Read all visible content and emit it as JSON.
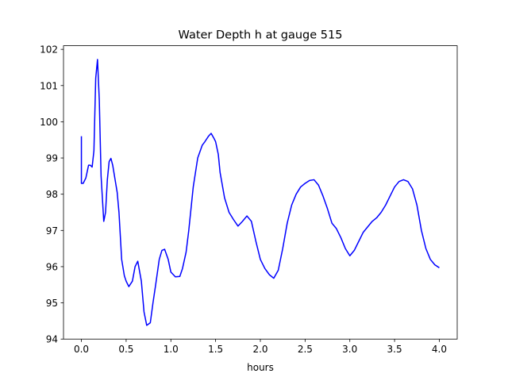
{
  "chart_data": {
    "type": "line",
    "title": "Water Depth h at gauge 515",
    "xlabel": "hours",
    "ylabel": "",
    "xlim": [
      -0.2,
      4.2
    ],
    "ylim": [
      94,
      102.1
    ],
    "grid": false,
    "x_ticks": [
      0.0,
      0.5,
      1.0,
      1.5,
      2.0,
      2.5,
      3.0,
      3.5,
      4.0
    ],
    "x_tick_labels": [
      "0.0",
      "0.5",
      "1.0",
      "1.5",
      "2.0",
      "2.5",
      "3.0",
      "3.5",
      "4.0"
    ],
    "y_ticks": [
      94,
      95,
      96,
      97,
      98,
      99,
      100,
      101,
      102
    ],
    "y_tick_labels": [
      "94",
      "95",
      "96",
      "97",
      "98",
      "99",
      "100",
      "101",
      "102"
    ],
    "series": [
      {
        "color": "#0000ff",
        "x": [
          0.0,
          0.0,
          0.02,
          0.05,
          0.08,
          0.1,
          0.12,
          0.14,
          0.16,
          0.18,
          0.2,
          0.22,
          0.25,
          0.27,
          0.29,
          0.31,
          0.33,
          0.35,
          0.37,
          0.4,
          0.42,
          0.45,
          0.48,
          0.5,
          0.53,
          0.57,
          0.6,
          0.63,
          0.67,
          0.7,
          0.73,
          0.77,
          0.8,
          0.83,
          0.87,
          0.9,
          0.93,
          0.97,
          1.0,
          1.05,
          1.1,
          1.13,
          1.17,
          1.2,
          1.25,
          1.3,
          1.35,
          1.38,
          1.42,
          1.45,
          1.48,
          1.5,
          1.53,
          1.55,
          1.6,
          1.65,
          1.7,
          1.75,
          1.8,
          1.85,
          1.9,
          1.95,
          2.0,
          2.05,
          2.1,
          2.15,
          2.2,
          2.25,
          2.3,
          2.35,
          2.4,
          2.45,
          2.5,
          2.55,
          2.6,
          2.65,
          2.7,
          2.75,
          2.8,
          2.85,
          2.9,
          2.95,
          3.0,
          3.05,
          3.1,
          3.15,
          3.2,
          3.25,
          3.3,
          3.35,
          3.4,
          3.45,
          3.5,
          3.55,
          3.6,
          3.65,
          3.7,
          3.75,
          3.8,
          3.85,
          3.9,
          3.95,
          4.0
        ],
        "y": [
          99.6,
          98.3,
          98.3,
          98.45,
          98.8,
          98.8,
          98.75,
          99.2,
          101.2,
          101.72,
          100.6,
          98.5,
          97.25,
          97.5,
          98.4,
          98.9,
          98.99,
          98.8,
          98.5,
          98.05,
          97.5,
          96.2,
          95.75,
          95.6,
          95.45,
          95.6,
          96.0,
          96.15,
          95.6,
          94.75,
          94.38,
          94.45,
          95.0,
          95.5,
          96.2,
          96.45,
          96.48,
          96.2,
          95.85,
          95.72,
          95.73,
          95.95,
          96.4,
          97.0,
          98.2,
          99.0,
          99.35,
          99.45,
          99.6,
          99.68,
          99.55,
          99.45,
          99.1,
          98.6,
          97.9,
          97.5,
          97.3,
          97.12,
          97.25,
          97.4,
          97.25,
          96.7,
          96.2,
          95.95,
          95.78,
          95.68,
          95.9,
          96.5,
          97.2,
          97.7,
          98.0,
          98.2,
          98.3,
          98.38,
          98.4,
          98.25,
          97.95,
          97.6,
          97.2,
          97.05,
          96.8,
          96.5,
          96.3,
          96.45,
          96.7,
          96.95,
          97.1,
          97.25,
          97.35,
          97.5,
          97.7,
          97.95,
          98.2,
          98.35,
          98.4,
          98.35,
          98.15,
          97.7,
          97.0,
          96.5,
          96.2,
          96.05,
          95.97
        ]
      }
    ]
  }
}
